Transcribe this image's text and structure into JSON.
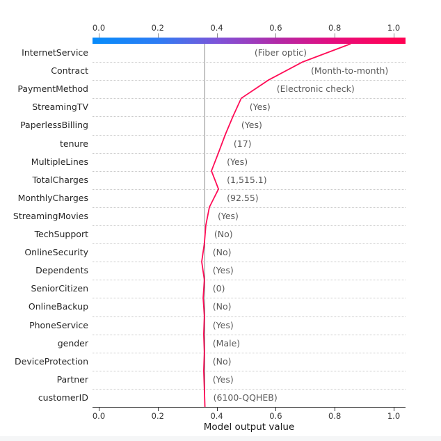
{
  "figure": {
    "xlabel": "Model output value",
    "background": "#ffffff"
  },
  "chart_data": {
    "type": "line",
    "variant": "shap-decision-plot",
    "title": "",
    "xlabel": "Model output value",
    "xlim": [
      -0.021,
      1.04
    ],
    "x_ticks": [
      {
        "value": 0.0,
        "label": "0.0"
      },
      {
        "value": 0.2,
        "label": "0.2"
      },
      {
        "value": 0.4,
        "label": "0.4"
      },
      {
        "value": 0.6,
        "label": "0.6"
      },
      {
        "value": 0.8,
        "label": "0.8"
      },
      {
        "value": 1.0,
        "label": "1.0"
      }
    ],
    "base_value": 0.36,
    "model_output": 0.854,
    "legend_position": "none",
    "grid": "dotted-row-separators",
    "features": [
      {
        "name": "InternetService",
        "value_label": "(Fiber optic)",
        "cumulative": 0.854,
        "contribution": 0.163,
        "annotation_align": "right"
      },
      {
        "name": "Contract",
        "value_label": "(Month-to-month)",
        "cumulative": 0.691,
        "contribution": 0.116,
        "annotation_align": "left"
      },
      {
        "name": "PaymentMethod",
        "value_label": "(Electronic check)",
        "cumulative": 0.575,
        "contribution": 0.092,
        "annotation_align": "left"
      },
      {
        "name": "StreamingTV",
        "value_label": "(Yes)",
        "cumulative": 0.483,
        "contribution": 0.028,
        "annotation_align": "left"
      },
      {
        "name": "PaperlessBilling",
        "value_label": "(Yes)",
        "cumulative": 0.455,
        "contribution": 0.026,
        "annotation_align": "left"
      },
      {
        "name": "tenure",
        "value_label": "(17)",
        "cumulative": 0.429,
        "contribution": 0.023,
        "annotation_align": "left"
      },
      {
        "name": "MultipleLines",
        "value_label": "(Yes)",
        "cumulative": 0.406,
        "contribution": 0.024,
        "annotation_align": "left"
      },
      {
        "name": "TotalCharges",
        "value_label": "(1,515.1)",
        "cumulative": 0.382,
        "contribution": -0.024,
        "annotation_align": "left"
      },
      {
        "name": "MonthlyCharges",
        "value_label": "(92.55)",
        "cumulative": 0.406,
        "contribution": 0.031,
        "annotation_align": "left"
      },
      {
        "name": "StreamingMovies",
        "value_label": "(Yes)",
        "cumulative": 0.375,
        "contribution": 0.012,
        "annotation_align": "left"
      },
      {
        "name": "TechSupport",
        "value_label": "(No)",
        "cumulative": 0.363,
        "contribution": 0.005,
        "annotation_align": "left"
      },
      {
        "name": "OnlineSecurity",
        "value_label": "(No)",
        "cumulative": 0.358,
        "contribution": 0.009,
        "annotation_align": "left"
      },
      {
        "name": "Dependents",
        "value_label": "(Yes)",
        "cumulative": 0.349,
        "contribution": -0.009,
        "annotation_align": "left"
      },
      {
        "name": "SeniorCitizen",
        "value_label": "(0)",
        "cumulative": 0.358,
        "contribution": 0.004,
        "annotation_align": "left"
      },
      {
        "name": "OnlineBackup",
        "value_label": "(No)",
        "cumulative": 0.354,
        "contribution": -0.004,
        "annotation_align": "left"
      },
      {
        "name": "PhoneService",
        "value_label": "(Yes)",
        "cumulative": 0.358,
        "contribution": 0.002,
        "annotation_align": "left"
      },
      {
        "name": "gender",
        "value_label": "(Male)",
        "cumulative": 0.356,
        "contribution": -0.002,
        "annotation_align": "left"
      },
      {
        "name": "DeviceProtection",
        "value_label": "(No)",
        "cumulative": 0.358,
        "contribution": 0.002,
        "annotation_align": "left"
      },
      {
        "name": "Partner",
        "value_label": "(Yes)",
        "cumulative": 0.356,
        "contribution": -0.002,
        "annotation_align": "left"
      },
      {
        "name": "customerID",
        "value_label": "(6100-QQHEB)",
        "cumulative": 0.358,
        "contribution": -0.002,
        "annotation_align": "left"
      }
    ],
    "colorbar": {
      "min": 0.0,
      "max": 1.0,
      "gradient_stops": [
        {
          "pct": 0,
          "color": "#0689fb"
        },
        {
          "pct": 2,
          "color": "#0a8bfa"
        },
        {
          "pct": 21,
          "color": "#2e7cf4"
        },
        {
          "pct": 31,
          "color": "#5868e5"
        },
        {
          "pct": 40,
          "color": "#7e53d8"
        },
        {
          "pct": 50,
          "color": "#993fc0"
        },
        {
          "pct": 59,
          "color": "#b22aa7"
        },
        {
          "pct": 77,
          "color": "#e50d7e"
        },
        {
          "pct": 96,
          "color": "#ff0456"
        },
        {
          "pct": 100,
          "color": "#ff0253"
        }
      ]
    },
    "colors": {
      "line": "#ff0d57",
      "base_value_line": "#8a8a8a",
      "grid_dotted": "#c9c9c9",
      "axis_spine": "#333333",
      "feature_label_text": "#262626",
      "annotation_text": "#595959",
      "tick_text": "#333333"
    }
  }
}
